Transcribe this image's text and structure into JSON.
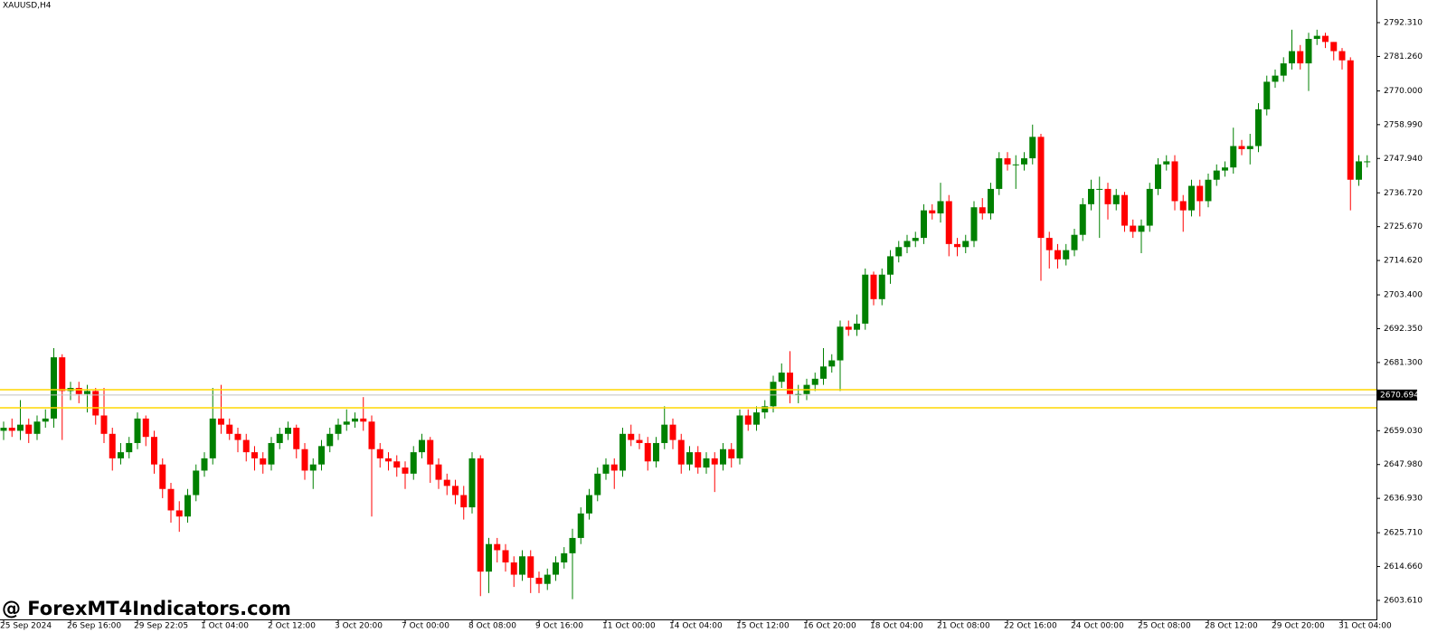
{
  "chart_data": {
    "type": "candlestick",
    "title": "XAUUSD,H4",
    "watermark": "@ ForexMT4Indicators.com",
    "up_color": "#008000",
    "down_color": "#ff0000",
    "level_color": "#ffd700",
    "open": [
      2659,
      2660,
      2659,
      2661,
      2658,
      2662,
      2663,
      2683,
      2672,
      2673,
      2671,
      2672,
      2664,
      2658,
      2650,
      2652,
      2655,
      2663,
      2657,
      2648,
      2640,
      2633,
      2631,
      2638,
      2646,
      2650,
      2663,
      2661,
      2658,
      2656,
      2652,
      2650,
      2648,
      2655,
      2658,
      2660,
      2653,
      2646,
      2648,
      2654,
      2658,
      2661,
      2662,
      2663,
      2662,
      2653,
      2650,
      2649,
      2647,
      2645,
      2652,
      2656,
      2648,
      2643,
      2641,
      2638,
      2634,
      2650,
      2613,
      2622,
      2620,
      2616,
      2612,
      2618,
      2611,
      2609,
      2612,
      2616,
      2619,
      2624,
      2632,
      2638,
      2645,
      2648,
      2646,
      2658,
      2656,
      2655,
      2649,
      2655,
      2661,
      2656,
      2648,
      2652,
      2647,
      2650,
      2648,
      2653,
      2650,
      2664,
      2661,
      2665,
      2667,
      2675,
      2678,
      2671,
      2671,
      2674,
      2676,
      2680,
      2682,
      2693,
      2692,
      2694,
      2710,
      2702,
      2710,
      2716,
      2719,
      2721,
      2722,
      2731,
      2730,
      2734,
      2720,
      2719,
      2721,
      2732,
      2730,
      2738,
      2748,
      2746,
      2746,
      2748,
      2755,
      2722,
      2718,
      2715,
      2718,
      2723,
      2733,
      2738,
      2738,
      2733,
      2736,
      2726,
      2724,
      2726,
      2738,
      2746,
      2747,
      2734,
      2731,
      2739,
      2734,
      2741,
      2744,
      2745,
      2752,
      2751,
      2752,
      2764,
      2773,
      2775,
      2779,
      2783,
      2779,
      2787,
      2788,
      2786,
      2783,
      2780,
      2741,
      2747
    ],
    "high": [
      2662,
      2663,
      2669,
      2663,
      2664,
      2666,
      2686,
      2684,
      2675,
      2675,
      2674,
      2673,
      2673,
      2660,
      2655,
      2657,
      2665,
      2664,
      2659,
      2650,
      2642,
      2636,
      2640,
      2648,
      2652,
      2673,
      2674,
      2663,
      2660,
      2658,
      2654,
      2652,
      2657,
      2660,
      2662,
      2661,
      2655,
      2650,
      2656,
      2660,
      2663,
      2666,
      2665,
      2670,
      2664,
      2655,
      2652,
      2651,
      2649,
      2654,
      2658,
      2657,
      2650,
      2645,
      2643,
      2641,
      2652,
      2651,
      2624,
      2624,
      2622,
      2618,
      2620,
      2620,
      2613,
      2614,
      2618,
      2621,
      2627,
      2634,
      2640,
      2647,
      2650,
      2650,
      2660,
      2661,
      2658,
      2657,
      2657,
      2667,
      2663,
      2658,
      2654,
      2654,
      2652,
      2652,
      2655,
      2655,
      2666,
      2666,
      2667,
      2669,
      2677,
      2681,
      2685,
      2674,
      2676,
      2678,
      2686,
      2684,
      2695,
      2695,
      2697,
      2712,
      2711,
      2712,
      2718,
      2721,
      2723,
      2724,
      2733,
      2733,
      2740,
      2736,
      2722,
      2723,
      2734,
      2735,
      2740,
      2750,
      2750,
      2749,
      2750,
      2759,
      2756,
      2724,
      2720,
      2720,
      2725,
      2735,
      2741,
      2742,
      2740,
      2738,
      2737,
      2728,
      2728,
      2740,
      2748,
      2749,
      2749,
      2736,
      2741,
      2741,
      2743,
      2746,
      2747,
      2758,
      2754,
      2756,
      2766,
      2775,
      2777,
      2781,
      2790,
      2785,
      2789,
      2790,
      2789,
      2786,
      2784,
      2781,
      2749,
      2749
    ],
    "low": [
      2656,
      2657,
      2656,
      2655,
      2656,
      2660,
      2660,
      2656,
      2669,
      2668,
      2665,
      2661,
      2655,
      2646,
      2648,
      2650,
      2653,
      2654,
      2645,
      2637,
      2629,
      2626,
      2629,
      2636,
      2644,
      2648,
      2658,
      2656,
      2652,
      2649,
      2646,
      2645,
      2646,
      2653,
      2656,
      2650,
      2643,
      2640,
      2646,
      2652,
      2656,
      2659,
      2660,
      2659,
      2631,
      2647,
      2646,
      2644,
      2640,
      2643,
      2650,
      2642,
      2640,
      2638,
      2635,
      2630,
      2632,
      2605,
      2606,
      2616,
      2613,
      2608,
      2610,
      2606,
      2606,
      2607,
      2610,
      2614,
      2604,
      2622,
      2630,
      2636,
      2643,
      2640,
      2644,
      2654,
      2653,
      2646,
      2647,
      2653,
      2653,
      2645,
      2646,
      2645,
      2645,
      2639,
      2646,
      2647,
      2648,
      2659,
      2659,
      2663,
      2665,
      2673,
      2668,
      2668,
      2669,
      2672,
      2674,
      2678,
      2672,
      2690,
      2690,
      2692,
      2700,
      2700,
      2707,
      2714,
      2717,
      2719,
      2720,
      2728,
      2727,
      2716,
      2716,
      2717,
      2719,
      2728,
      2728,
      2736,
      2744,
      2738,
      2744,
      2746,
      2708,
      2712,
      2712,
      2713,
      2716,
      2721,
      2731,
      2722,
      2728,
      2731,
      2724,
      2722,
      2717,
      2724,
      2736,
      2744,
      2731,
      2724,
      2729,
      2729,
      2732,
      2739,
      2742,
      2743,
      2749,
      2746,
      2750,
      2762,
      2771,
      2773,
      2777,
      2777,
      2770,
      2785,
      2784,
      2780,
      2777,
      2731,
      2739,
      2745
    ],
    "close": [
      2660,
      2659,
      2661,
      2658,
      2662,
      2663,
      2683,
      2672,
      2673,
      2671,
      2672,
      2664,
      2658,
      2650,
      2652,
      2655,
      2663,
      2657,
      2648,
      2640,
      2633,
      2631,
      2638,
      2646,
      2650,
      2663,
      2661,
      2658,
      2656,
      2652,
      2650,
      2648,
      2655,
      2658,
      2660,
      2653,
      2646,
      2648,
      2654,
      2658,
      2661,
      2662,
      2663,
      2662,
      2653,
      2650,
      2649,
      2647,
      2645,
      2652,
      2656,
      2648,
      2643,
      2641,
      2638,
      2634,
      2650,
      2613,
      2622,
      2620,
      2616,
      2612,
      2618,
      2611,
      2609,
      2612,
      2616,
      2619,
      2624,
      2632,
      2638,
      2645,
      2648,
      2646,
      2658,
      2656,
      2655,
      2649,
      2655,
      2661,
      2656,
      2648,
      2652,
      2647,
      2650,
      2648,
      2653,
      2650,
      2664,
      2661,
      2665,
      2667,
      2675,
      2678,
      2671,
      2671,
      2674,
      2676,
      2680,
      2682,
      2693,
      2692,
      2694,
      2710,
      2702,
      2710,
      2716,
      2719,
      2721,
      2722,
      2731,
      2730,
      2734,
      2720,
      2719,
      2721,
      2732,
      2730,
      2738,
      2748,
      2746,
      2746,
      2748,
      2755,
      2722,
      2718,
      2715,
      2718,
      2723,
      2733,
      2738,
      2738,
      2733,
      2736,
      2726,
      2724,
      2726,
      2738,
      2746,
      2747,
      2734,
      2731,
      2739,
      2734,
      2741,
      2744,
      2745,
      2752,
      2751,
      2752,
      2764,
      2773,
      2775,
      2779,
      2783,
      2779,
      2787,
      2788,
      2786,
      2783,
      2780,
      2741,
      2747,
      2747
    ],
    "levels": [
      2672.4,
      2666.5
    ],
    "current_price": {
      "value": 2670.694,
      "label": "2670.694"
    },
    "ylim": [
      2597.4,
      2799.7
    ],
    "yticks": [
      {
        "value": 2792.31,
        "label": "2792.310"
      },
      {
        "value": 2781.26,
        "label": "2781.260"
      },
      {
        "value": 2770,
        "label": "2770.000"
      },
      {
        "value": 2758.99,
        "label": "2758.990"
      },
      {
        "value": 2747.94,
        "label": "2747.940"
      },
      {
        "value": 2736.72,
        "label": "2736.720"
      },
      {
        "value": 2725.67,
        "label": "2725.670"
      },
      {
        "value": 2714.62,
        "label": "2714.620"
      },
      {
        "value": 2703.4,
        "label": "2703.400"
      },
      {
        "value": 2692.35,
        "label": "2692.350"
      },
      {
        "value": 2681.3,
        "label": "2681.300"
      },
      {
        "value": 2659.03,
        "label": "2659.030"
      },
      {
        "value": 2647.98,
        "label": "2647.980"
      },
      {
        "value": 2636.93,
        "label": "2636.930"
      },
      {
        "value": 2625.71,
        "label": "2625.710"
      },
      {
        "value": 2614.66,
        "label": "2614.660"
      },
      {
        "value": 2603.61,
        "label": "2603.610"
      }
    ],
    "xticks": [
      {
        "value": 0,
        "label": "25 Sep 2024"
      },
      {
        "value": 8,
        "label": "26 Sep 16:00"
      },
      {
        "value": 16,
        "label": "29 Sep 22:05"
      },
      {
        "value": 24,
        "label": "1 Oct 04:00"
      },
      {
        "value": 32,
        "label": "2 Oct 12:00"
      },
      {
        "value": 40,
        "label": "3 Oct 20:00"
      },
      {
        "value": 48,
        "label": "7 Oct 00:00"
      },
      {
        "value": 56,
        "label": "8 Oct 08:00"
      },
      {
        "value": 64,
        "label": "9 Oct 16:00"
      },
      {
        "value": 72,
        "label": "11 Oct 00:00"
      },
      {
        "value": 80,
        "label": "14 Oct 04:00"
      },
      {
        "value": 88,
        "label": "15 Oct 12:00"
      },
      {
        "value": 96,
        "label": "16 Oct 20:00"
      },
      {
        "value": 104,
        "label": "18 Oct 04:00"
      },
      {
        "value": 112,
        "label": "21 Oct 08:00"
      },
      {
        "value": 120,
        "label": "22 Oct 16:00"
      },
      {
        "value": 128,
        "label": "24 Oct 00:00"
      },
      {
        "value": 136,
        "label": "25 Oct 08:00"
      },
      {
        "value": 144,
        "label": "28 Oct 12:00"
      },
      {
        "value": 152,
        "label": "29 Oct 20:00"
      },
      {
        "value": 160,
        "label": "31 Oct 04:00"
      }
    ]
  }
}
